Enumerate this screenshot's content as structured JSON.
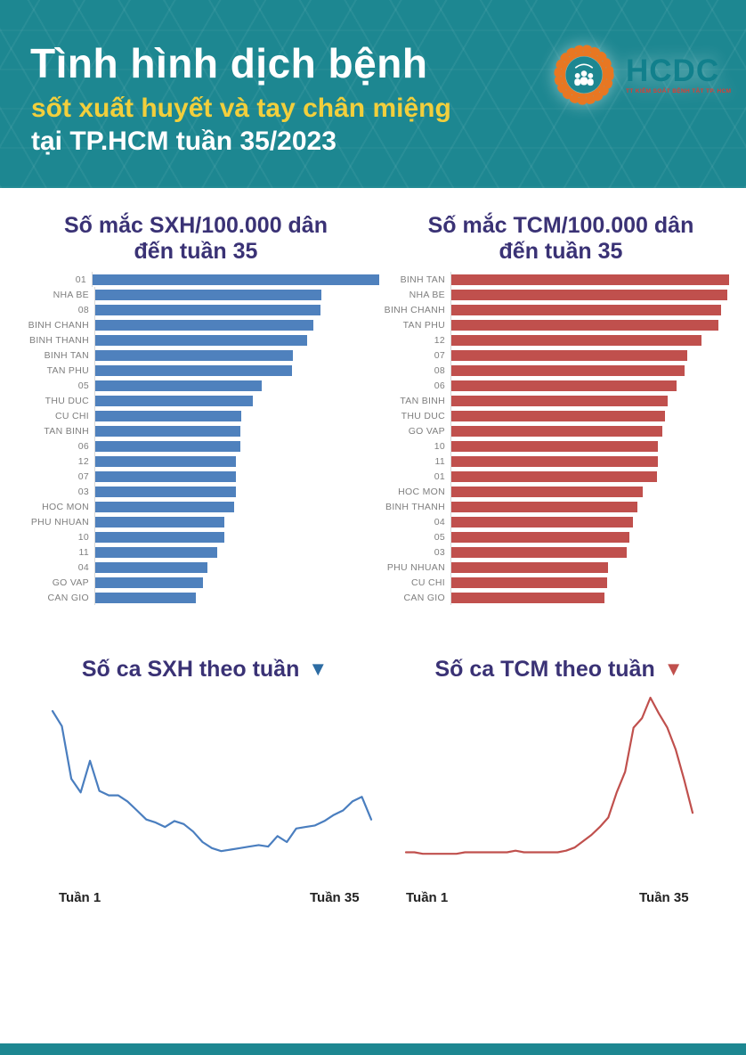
{
  "header": {
    "title": "Tình hình dịch bệnh",
    "subtitle_yellow": "sốt xuất huyết và tay chân miệng",
    "subtitle_white": "tại TP.HCM tuần 35/2023",
    "background_color": "#1d8791",
    "subtitle_yellow_color": "#f2cf3c",
    "logo": {
      "icon": "hcdc-flower-logo-icon",
      "name": "HCDC",
      "tagline": "TT KIỂM SOÁT BỆNH TẬT TP. HCM",
      "ring_color": "#e87722",
      "name_color": "#11808c",
      "tagline_color": "#e03c31"
    }
  },
  "chart_data": [
    {
      "id": "sxh_incidence_by_district",
      "type": "bar",
      "orientation": "horizontal",
      "title": "Số mắc SXH/100.000 dân đến tuần 35",
      "title_lines": [
        "Số mắc SXH/100.000 dân",
        "đến tuần 35"
      ],
      "bar_color": "#4f81bd",
      "axis_note": "no numeric axis shown; values are relative bar lengths as % of longest bar",
      "categories": [
        "01",
        "NHA BE",
        "08",
        "BINH CHANH",
        "BINH THANH",
        "BINH TAN",
        "TAN PHU",
        "05",
        "THU DUC",
        "CU CHI",
        "TAN BINH",
        "06",
        "12",
        "07",
        "03",
        "HOC MON",
        "PHU NHUAN",
        "10",
        "11",
        "04",
        "GO VAP",
        "CAN GIO"
      ],
      "values": [
        100,
        79,
        78.5,
        76,
        74,
        69,
        68.5,
        58,
        55,
        51,
        50.5,
        50.5,
        49,
        49,
        49,
        48.5,
        45,
        45,
        42.5,
        39,
        37.5,
        35
      ]
    },
    {
      "id": "tcm_incidence_by_district",
      "type": "bar",
      "orientation": "horizontal",
      "title": "Số mắc TCM/100.000 dân đến tuần 35",
      "title_lines": [
        "Số mắc TCM/100.000 dân",
        "đến tuần 35"
      ],
      "bar_color": "#c0504d",
      "axis_note": "no numeric axis shown; values are relative bar lengths as % of longest bar",
      "categories": [
        "BINH TAN",
        "NHA BE",
        "BINH CHANH",
        "TAN PHU",
        "12",
        "07",
        "08",
        "06",
        "TAN BINH",
        "THU DUC",
        "GO VAP",
        "10",
        "11",
        "01",
        "HOC MON",
        "BINH THANH",
        "04",
        "05",
        "03",
        "PHU NHUAN",
        "CU CHI",
        "CAN GIO"
      ],
      "values": [
        100,
        99.5,
        97,
        96,
        90,
        85,
        84,
        81,
        78,
        77,
        76,
        74.5,
        74.5,
        74,
        69,
        67,
        65.5,
        64,
        63,
        56.5,
        56,
        55
      ]
    },
    {
      "id": "sxh_cases_by_week",
      "type": "line",
      "title": "Số ca SXH theo tuần",
      "marker": "▼",
      "marker_icon": "down-triangle-icon",
      "marker_color": "#2d6ca3",
      "line_color": "#4a7ebf",
      "x_start_label": "Tuần 1",
      "x_end_label": "Tuần 35",
      "x_range": [
        1,
        35
      ],
      "axis_note": "no numeric y-axis shown; values normalized 0-100 to week-1 peak",
      "values": [
        100,
        90,
        55,
        46,
        67,
        47,
        44,
        44,
        40,
        34,
        28,
        26,
        23,
        27,
        25,
        20,
        13,
        9,
        7,
        8,
        9,
        10,
        11,
        10,
        17,
        13,
        22,
        23,
        24,
        27,
        31,
        34,
        40,
        43,
        28
      ]
    },
    {
      "id": "tcm_cases_by_week",
      "type": "line",
      "title": "Số ca TCM theo tuần",
      "marker": "▼",
      "marker_icon": "down-triangle-icon",
      "marker_color": "#c0504d",
      "line_color": "#c0504d",
      "x_start_label": "Tuần 1",
      "x_end_label": "Tuần 35",
      "x_range": [
        1,
        35
      ],
      "axis_note": "no numeric y-axis shown; values normalized 0-100 to week-30 peak",
      "values": [
        2,
        2,
        1,
        1,
        1,
        1,
        1,
        2,
        2,
        2,
        2,
        2,
        2,
        3,
        2,
        2,
        2,
        2,
        2,
        3,
        5,
        9,
        13,
        18,
        24,
        40,
        53,
        81,
        87,
        100,
        90,
        81,
        67,
        48,
        27
      ]
    }
  ],
  "footer": {
    "bar_color": "#1d8791"
  }
}
